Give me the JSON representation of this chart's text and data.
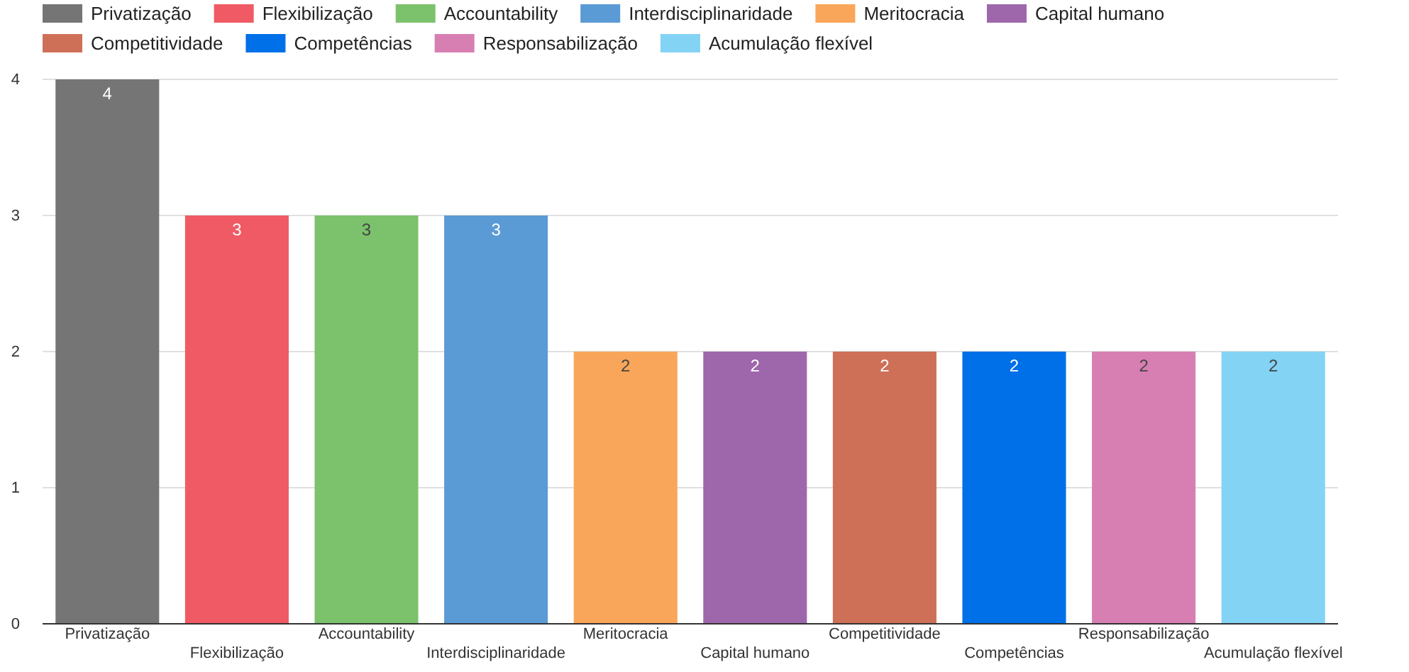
{
  "chart_data": {
    "type": "bar",
    "categories": [
      "Privatização",
      "Flexibilização",
      "Accountability",
      "Interdisciplinaridade",
      "Meritocracia",
      "Capital humano",
      "Competitividade",
      "Competências",
      "Responsabilização",
      "Acumulação flexível"
    ],
    "series": [
      {
        "name": "Privatização",
        "color": "#757575",
        "values": [
          4,
          null,
          null,
          null,
          null,
          null,
          null,
          null,
          null,
          null
        ]
      },
      {
        "name": "Flexibilização",
        "color": "#f05a64",
        "values": [
          null,
          3,
          null,
          null,
          null,
          null,
          null,
          null,
          null,
          null
        ]
      },
      {
        "name": "Accountability",
        "color": "#7cc26c",
        "values": [
          null,
          null,
          3,
          null,
          null,
          null,
          null,
          null,
          null,
          null
        ]
      },
      {
        "name": "Interdisciplinaridade",
        "color": "#5b9bd5",
        "values": [
          null,
          null,
          null,
          3,
          null,
          null,
          null,
          null,
          null,
          null
        ]
      },
      {
        "name": "Meritocracia",
        "color": "#f9a65a",
        "values": [
          null,
          null,
          null,
          null,
          2,
          null,
          null,
          null,
          null,
          null
        ]
      },
      {
        "name": "Capital humano",
        "color": "#9e67ab",
        "values": [
          null,
          null,
          null,
          null,
          null,
          2,
          null,
          null,
          null,
          null
        ]
      },
      {
        "name": "Competitividade",
        "color": "#ce7058",
        "values": [
          null,
          null,
          null,
          null,
          null,
          null,
          2,
          null,
          null,
          null
        ]
      },
      {
        "name": "Competências",
        "color": "#0070e8",
        "values": [
          null,
          null,
          null,
          null,
          null,
          null,
          null,
          2,
          null,
          null
        ]
      },
      {
        "name": "Responsabilização",
        "color": "#d77fb3",
        "values": [
          null,
          null,
          null,
          null,
          null,
          null,
          null,
          null,
          2,
          null
        ]
      },
      {
        "name": "Acumulação flexível",
        "color": "#83d3f5",
        "values": [
          null,
          null,
          null,
          null,
          null,
          null,
          null,
          null,
          null,
          2
        ]
      }
    ],
    "stacked": true,
    "ylim": [
      0,
      4
    ],
    "yticks": [
      0,
      1,
      2,
      3,
      4
    ],
    "grid": "y",
    "legend": "top",
    "data_labels": true
  }
}
